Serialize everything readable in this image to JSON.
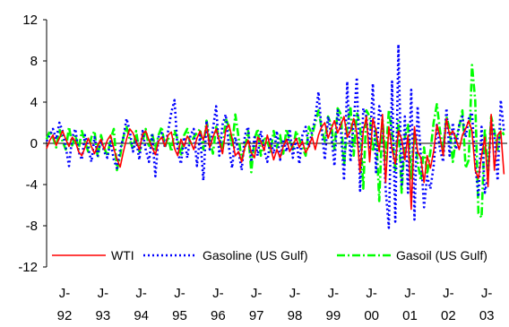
{
  "chart_data": {
    "type": "line",
    "title": "",
    "xlabel": "",
    "ylabel": "",
    "ylim": [
      -12,
      12
    ],
    "yticks": [
      -12,
      -8,
      -4,
      0,
      4,
      8,
      12
    ],
    "xlim": [
      1992.0,
      2004.0
    ],
    "x_tick_labels": [
      {
        "x": 1992.0,
        "line1": "J-",
        "line2": "92"
      },
      {
        "x": 1993.0,
        "line1": "J-",
        "line2": "93"
      },
      {
        "x": 1994.0,
        "line1": "J-",
        "line2": "94"
      },
      {
        "x": 1995.0,
        "line1": "J-",
        "line2": "95"
      },
      {
        "x": 1996.0,
        "line1": "J-",
        "line2": "96"
      },
      {
        "x": 1997.0,
        "line1": "J-",
        "line2": "97"
      },
      {
        "x": 1998.0,
        "line1": "J-",
        "line2": "98"
      },
      {
        "x": 1999.0,
        "line1": "J-",
        "line2": "99"
      },
      {
        "x": 2000.0,
        "line1": "J-",
        "line2": "00"
      },
      {
        "x": 2001.0,
        "line1": "J-",
        "line2": "01"
      },
      {
        "x": 2002.0,
        "line1": "J-",
        "line2": "02"
      },
      {
        "x": 2003.0,
        "line1": "J-",
        "line2": "03"
      }
    ],
    "grid": false,
    "legend_position": "bottom-inside",
    "series": [
      {
        "name": "WTI",
        "color": "#ff0000",
        "style": "solid",
        "x_start": 1992.0,
        "x_step": 0.08333,
        "values": [
          -0.5,
          0.3,
          0.8,
          -0.2,
          0.5,
          1.2,
          0.4,
          -0.3,
          0.6,
          0.2,
          -0.8,
          -1.2,
          -0.4,
          0.5,
          -0.3,
          -1.0,
          -0.2,
          0.4,
          -0.6,
          0.3,
          0.8,
          -0.5,
          -1.5,
          -2.3,
          -0.8,
          0.4,
          1.4,
          1.0,
          0.2,
          -0.6,
          0.9,
          1.2,
          0.3,
          -0.4,
          -1.1,
          0.2,
          0.6,
          -0.3,
          0.8,
          1.1,
          -0.5,
          -1.2,
          0.4,
          -0.3,
          0.7,
          0.2,
          -0.6,
          0.5,
          1.2,
          0.3,
          1.8,
          -0.4,
          0.6,
          1.4,
          0.2,
          -1.0,
          1.3,
          1.8,
          0.5,
          -1.2,
          -0.8,
          -1.8,
          -0.4,
          0.3,
          -0.9,
          -1.4,
          0.6,
          0.2,
          -0.7,
          0.8,
          -0.4,
          -1.6,
          -0.6,
          -1.4,
          -0.3,
          0.4,
          -0.8,
          -0.2,
          0.5,
          -0.4,
          0.2,
          -0.9,
          -0.3,
          0.6,
          -0.6,
          0.8,
          1.6,
          2.0,
          0.5,
          1.4,
          2.2,
          1.0,
          1.8,
          2.6,
          0.6,
          1.2,
          2.4,
          1.0,
          -2.8,
          1.2,
          2.6,
          -1.8,
          2.4,
          1.2,
          -0.8,
          2.8,
          -3.8,
          1.6,
          -0.6,
          -2.0,
          1.2,
          0.4,
          -1.6,
          0.8,
          -6.4,
          1.6,
          -0.8,
          -1.4,
          -3.8,
          -1.2,
          -2.4,
          -0.8,
          1.8,
          0.6,
          -1.2,
          2.4,
          0.8,
          1.2,
          0.4,
          -0.6,
          0.8,
          1.4,
          2.2,
          1.2,
          -2.6,
          -3.4,
          -1.2,
          0.6,
          -4.2,
          2.8,
          -2.6,
          0.8,
          1.2,
          -3.0
        ]
      },
      {
        "name": "Gasoline (US Gulf)",
        "color": "#0000ff",
        "style": "dotted",
        "x_start": 1992.0,
        "x_step": 0.08333,
        "values": [
          0.2,
          0.8,
          1.4,
          0.4,
          2.0,
          1.2,
          -0.4,
          -2.2,
          0.6,
          1.4,
          -0.8,
          -1.6,
          0.8,
          -0.4,
          -1.8,
          0.6,
          -1.2,
          0.4,
          -0.8,
          -1.4,
          0.2,
          -1.6,
          -2.4,
          -0.6,
          0.6,
          2.4,
          1.2,
          -0.8,
          0.4,
          -1.6,
          1.2,
          -0.6,
          -1.8,
          0.8,
          -3.2,
          0.6,
          1.0,
          -0.4,
          1.2,
          3.0,
          4.2,
          -0.8,
          -2.0,
          0.6,
          -1.4,
          0.8,
          1.4,
          -2.2,
          0.8,
          -3.6,
          2.2,
          -0.6,
          1.4,
          3.6,
          -1.2,
          1.8,
          2.8,
          -0.4,
          -2.4,
          0.6,
          -0.8,
          -2.6,
          0.8,
          1.6,
          -1.8,
          0.6,
          -1.2,
          1.2,
          -0.6,
          -1.8,
          0.4,
          -1.0,
          1.2,
          -1.6,
          0.4,
          -0.8,
          1.4,
          -1.4,
          0.6,
          -2.0,
          0.8,
          1.6,
          -0.4,
          1.2,
          2.4,
          5.0,
          1.2,
          -1.6,
          2.6,
          0.8,
          -2.2,
          3.2,
          1.2,
          -3.6,
          6.0,
          -1.8,
          2.0,
          6.4,
          -4.6,
          3.4,
          2.6,
          -0.6,
          5.8,
          -2.8,
          3.6,
          2.2,
          -4.4,
          -8.2,
          6.0,
          -7.6,
          9.6,
          -4.2,
          2.6,
          -4.8,
          5.2,
          -7.4,
          3.6,
          -1.2,
          -6.2,
          -3.2,
          -4.4,
          -2.2,
          1.8,
          -0.6,
          -1.8,
          3.4,
          -1.2,
          2.0,
          -0.6,
          1.8,
          2.6,
          0.6,
          2.4,
          3.0,
          -2.0,
          -5.2,
          1.6,
          -4.8,
          -3.2,
          2.2,
          0.8,
          -3.6,
          4.2,
          1.2
        ]
      },
      {
        "name": "Gasoil (US Gulf)",
        "color": "#00ff00",
        "style": "dashdot",
        "x_start": 1992.0,
        "x_step": 0.08333,
        "values": [
          0.4,
          1.2,
          0.6,
          -0.4,
          1.4,
          0.2,
          -0.6,
          1.6,
          -0.2,
          0.8,
          -0.6,
          1.2,
          0.2,
          -0.8,
          0.6,
          1.2,
          -1.4,
          0.8,
          -0.4,
          -1.2,
          0.4,
          1.4,
          -2.6,
          -1.2,
          0.6,
          1.6,
          0.4,
          -0.6,
          1.2,
          -0.8,
          0.2,
          1.4,
          -0.4,
          1.0,
          -0.6,
          0.8,
          1.6,
          -0.4,
          0.6,
          -0.8,
          1.2,
          0.4,
          -1.2,
          0.8,
          1.4,
          -0.2,
          0.6,
          1.0,
          1.4,
          -0.6,
          2.2,
          0.4,
          -1.0,
          1.6,
          0.6,
          -0.8,
          2.4,
          1.6,
          -0.4,
          2.8,
          0.6,
          -1.6,
          -0.4,
          1.2,
          -2.8,
          0.4,
          1.4,
          -1.2,
          0.6,
          0.2,
          -0.8,
          1.2,
          -0.4,
          0.8,
          -1.0,
          1.4,
          0.2,
          -0.6,
          1.2,
          0.4,
          -0.4,
          -1.2,
          1.6,
          0.8,
          2.0,
          3.2,
          1.4,
          0.2,
          2.6,
          1.8,
          -0.6,
          3.4,
          2.8,
          -2.2,
          1.6,
          3.6,
          -1.2,
          3.0,
          1.8,
          -4.4,
          3.2,
          2.6,
          -0.8,
          1.4,
          -5.6,
          2.4,
          -1.6,
          3.2,
          1.0,
          -2.6,
          2.2,
          -4.8,
          0.6,
          1.8,
          -3.4,
          1.2,
          -1.8,
          -3.6,
          -0.4,
          -3.0,
          -0.8,
          2.0,
          3.8,
          1.2,
          -0.6,
          2.6,
          1.4,
          -1.8,
          0.6,
          1.6,
          3.2,
          -2.4,
          -1.6,
          7.6,
          4.2,
          -6.8,
          -7.2,
          1.4,
          -2.8,
          2.6,
          1.2,
          -0.6,
          1.4,
          0.8
        ]
      }
    ]
  }
}
